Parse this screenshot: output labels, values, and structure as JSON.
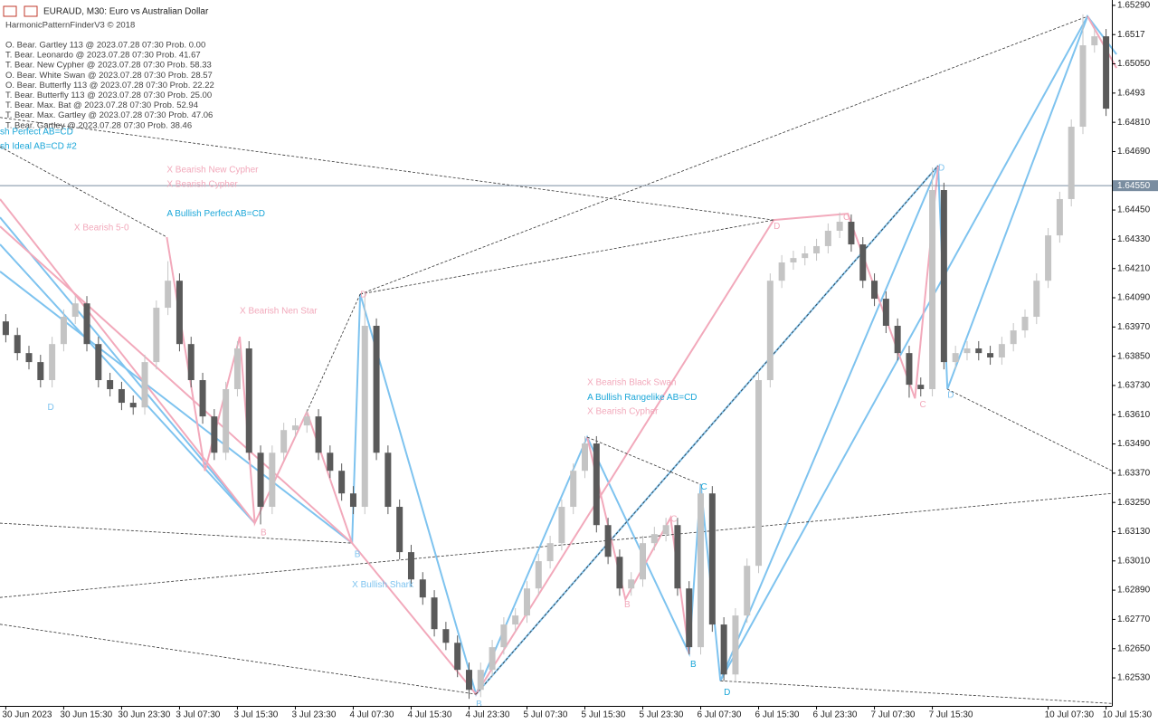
{
  "chart_data": {
    "type": "candlestick",
    "header": "EURAUD, M30:  Euro vs Australian Dollar",
    "indicator": "HarmonicPatternFinderV3 © 2018",
    "pattern_list": [
      "O. Bear. Gartley 113 @ 2023.07.28 07:30 Prob. 0.00",
      "T. Bear. Leonardo @ 2023.07.28 07:30 Prob. 41.67",
      "T. Bear. New Cypher @ 2023.07.28 07:30 Prob. 58.33",
      "O. Bear. White Swan @ 2023.07.28 07:30 Prob. 28.57",
      "O. Bear. Butterfly 113 @ 2023.07.28 07:30 Prob. 22.22",
      "T. Bear. Butterfly 113 @ 2023.07.28 07:30 Prob. 25.00",
      "T. Bear. Max. Bat @ 2023.07.28 07:30 Prob. 52.94",
      "T. Bear. Max. Gartley @ 2023.07.28 07:30 Prob. 47.06",
      "T. Bear. Gartley @ 2023.07.28 07:30 Prob. 38.46"
    ],
    "up_color": "#c4c4c4",
    "down_color": "#5a5a5a",
    "open": [
      1.63993,
      1.63937,
      1.63863,
      1.63826,
      1.63752,
      1.639,
      1.64012,
      1.64067,
      1.639,
      1.63752,
      1.63715,
      1.63659,
      1.6364,
      1.63826,
      1.64049,
      1.6416,
      1.639,
      1.63752,
      1.63603,
      1.63454,
      1.63715,
      1.63882,
      1.63454,
      1.63232,
      1.63454,
      1.63547,
      1.63566,
      1.63603,
      1.63454,
      1.6338,
      1.63287,
      1.63232,
      1.63975,
      1.63454,
      1.63232,
      1.63046,
      1.62934,
      1.6286,
      1.6273,
      1.62674,
      1.62563,
      1.62481,
      1.62563,
      1.62656,
      1.62749,
      1.62786,
      1.62897,
      1.63009,
      1.63083,
      1.63232,
      1.6338,
      1.63492,
      1.63157,
      1.63027,
      1.62897,
      1.62934,
      1.63083,
      1.6312,
      1.63157,
      1.62897,
      1.62656,
      1.63287,
      1.62749,
      1.62544,
      1.62786,
      1.6299,
      1.63752,
      1.6416,
      1.64235,
      1.64253,
      1.64272,
      1.64302,
      1.64365,
      1.64402,
      1.64309,
      1.6416,
      1.64086,
      1.63975,
      1.63863,
      1.63733,
      1.63715,
      1.64532,
      1.63826,
      1.63863,
      1.63882,
      1.63863,
      1.63845,
      1.639,
      1.63956,
      1.64012,
      1.6416,
      1.64346,
      1.64495,
      1.64792,
      1.65126,
      1.65163
    ],
    "high": [
      1.64023,
      1.63967,
      1.63893,
      1.63856,
      1.6393,
      1.64042,
      1.64097,
      1.64097,
      1.6393,
      1.63782,
      1.63745,
      1.63689,
      1.63856,
      1.64079,
      1.6424,
      1.6419,
      1.6393,
      1.63782,
      1.63633,
      1.63745,
      1.63912,
      1.63912,
      1.63484,
      1.63484,
      1.63577,
      1.63596,
      1.63633,
      1.63633,
      1.63484,
      1.6341,
      1.63317,
      1.64105,
      1.64005,
      1.63484,
      1.63262,
      1.63076,
      1.62964,
      1.6289,
      1.6276,
      1.62704,
      1.62593,
      1.62593,
      1.62686,
      1.62779,
      1.62816,
      1.62927,
      1.63039,
      1.63113,
      1.63262,
      1.6341,
      1.63522,
      1.63522,
      1.63187,
      1.63057,
      1.62964,
      1.63113,
      1.6315,
      1.63187,
      1.63187,
      1.62927,
      1.63317,
      1.63317,
      1.62779,
      1.62816,
      1.6302,
      1.63782,
      1.6419,
      1.64265,
      1.64283,
      1.64302,
      1.64332,
      1.64395,
      1.6444,
      1.64432,
      1.64339,
      1.6419,
      1.64116,
      1.64005,
      1.63893,
      1.63763,
      1.64625,
      1.64562,
      1.63893,
      1.63912,
      1.63912,
      1.63893,
      1.6393,
      1.63986,
      1.64042,
      1.6419,
      1.64376,
      1.64525,
      1.64822,
      1.65253,
      1.65193,
      1.65193
    ],
    "low": [
      1.63907,
      1.63833,
      1.63796,
      1.63722,
      1.63722,
      1.6387,
      1.63982,
      1.6387,
      1.63722,
      1.63685,
      1.63629,
      1.6361,
      1.6361,
      1.63796,
      1.64019,
      1.6387,
      1.63722,
      1.63573,
      1.63424,
      1.63424,
      1.63685,
      1.63424,
      1.6316,
      1.63202,
      1.63424,
      1.63517,
      1.63536,
      1.63424,
      1.6335,
      1.63257,
      1.63202,
      1.63202,
      1.63424,
      1.63202,
      1.63016,
      1.62904,
      1.6283,
      1.627,
      1.62644,
      1.62533,
      1.62444,
      1.62451,
      1.62533,
      1.62626,
      1.62719,
      1.62756,
      1.62867,
      1.62979,
      1.63053,
      1.63202,
      1.6335,
      1.63127,
      1.62997,
      1.62867,
      1.62867,
      1.62904,
      1.63053,
      1.6309,
      1.62867,
      1.62626,
      1.62626,
      1.62719,
      1.62518,
      1.62514,
      1.62756,
      1.6296,
      1.63722,
      1.6413,
      1.64205,
      1.64223,
      1.64242,
      1.64272,
      1.64335,
      1.64279,
      1.6413,
      1.64056,
      1.63945,
      1.63833,
      1.6368,
      1.63685,
      1.63685,
      1.63796,
      1.63796,
      1.63833,
      1.63833,
      1.63815,
      1.63815,
      1.6387,
      1.63926,
      1.63982,
      1.6413,
      1.64316,
      1.64465,
      1.64762,
      1.65096,
      1.64836
    ],
    "close": [
      1.63937,
      1.63863,
      1.63826,
      1.63752,
      1.639,
      1.64012,
      1.64067,
      1.639,
      1.63752,
      1.63715,
      1.63659,
      1.6364,
      1.63826,
      1.64049,
      1.6416,
      1.639,
      1.63752,
      1.63603,
      1.63454,
      1.63715,
      1.63882,
      1.63454,
      1.63232,
      1.63454,
      1.63547,
      1.63566,
      1.63603,
      1.63454,
      1.6338,
      1.63287,
      1.63232,
      1.63975,
      1.63454,
      1.63232,
      1.63046,
      1.62934,
      1.6286,
      1.6273,
      1.62674,
      1.62563,
      1.62481,
      1.62563,
      1.62656,
      1.62749,
      1.62786,
      1.62897,
      1.63009,
      1.63083,
      1.63232,
      1.6338,
      1.63492,
      1.63157,
      1.63027,
      1.62897,
      1.62934,
      1.63083,
      1.6312,
      1.63157,
      1.62897,
      1.62656,
      1.63287,
      1.62749,
      1.62544,
      1.62786,
      1.6299,
      1.63752,
      1.6416,
      1.64235,
      1.64253,
      1.64272,
      1.64302,
      1.64365,
      1.64402,
      1.64309,
      1.6416,
      1.64086,
      1.63975,
      1.63863,
      1.63733,
      1.63715,
      1.64532,
      1.63826,
      1.63863,
      1.63882,
      1.63863,
      1.63845,
      1.639,
      1.63956,
      1.64012,
      1.6416,
      1.64346,
      1.64495,
      1.64792,
      1.65126,
      1.65163,
      1.64866
    ],
    "xlim": [
      -0.5,
      95.5
    ],
    "xticks": [
      {
        "value": 0,
        "label": "30 Jun 2023"
      },
      {
        "value": 5,
        "label": "30 Jun 15:30"
      },
      {
        "value": 10,
        "label": "30 Jun 23:30"
      },
      {
        "value": 15,
        "label": "3 Jul 07:30"
      },
      {
        "value": 20,
        "label": "3 Jul 15:30"
      },
      {
        "value": 25,
        "label": "3 Jul 23:30"
      },
      {
        "value": 30,
        "label": "4 Jul 07:30"
      },
      {
        "value": 35,
        "label": "4 Jul 15:30"
      },
      {
        "value": 40,
        "label": "4 Jul 23:30"
      },
      {
        "value": 45,
        "label": "5 Jul 07:30"
      },
      {
        "value": 50,
        "label": "5 Jul 15:30"
      },
      {
        "value": 55,
        "label": "5 Jul 23:30"
      },
      {
        "value": 60,
        "label": "6 Jul 07:30"
      },
      {
        "value": 65,
        "label": "6 Jul 15:30"
      },
      {
        "value": 70,
        "label": "6 Jul 23:30"
      },
      {
        "value": 75,
        "label": "7 Jul 07:30"
      },
      {
        "value": 80,
        "label": "7 Jul 15:30"
      },
      {
        "value": 90,
        "label": "10 Jul 07:30"
      },
      {
        "value": 95,
        "label": "10 Jul 15:30"
      }
    ],
    "ylim": [
      1.62415,
      1.65312
    ],
    "yticks": [
      {
        "value": 1.6529,
        "label": "1.65290"
      },
      1.6517,
      {
        "value": 1.6505,
        "label": "1.65050"
      },
      1.6493,
      {
        "value": 1.6481,
        "label": "1.64810"
      },
      {
        "value": 1.6469,
        "label": "1.64690"
      },
      {
        "value": 1.6445,
        "label": "1.64450"
      },
      {
        "value": 1.6433,
        "label": "1.64330"
      },
      {
        "value": 1.6421,
        "label": "1.64210"
      },
      {
        "value": 1.6409,
        "label": "1.64090"
      },
      {
        "value": 1.6397,
        "label": "1.63970"
      },
      {
        "value": 1.6385,
        "label": "1.63850"
      },
      {
        "value": 1.6373,
        "label": "1.63730"
      },
      {
        "value": 1.6361,
        "label": "1.63610"
      },
      {
        "value": 1.6349,
        "label": "1.63490"
      },
      {
        "value": 1.6337,
        "label": "1.63370"
      },
      {
        "value": 1.6325,
        "label": "1.63250"
      },
      {
        "value": 1.6313,
        "label": "1.63130"
      },
      {
        "value": 1.6301,
        "label": "1.63010"
      },
      {
        "value": 1.6289,
        "label": "1.62890"
      },
      {
        "value": 1.6277,
        "label": "1.62770"
      },
      {
        "value": 1.6265,
        "label": "1.62650"
      },
      {
        "value": 1.6253,
        "label": "1.62530"
      }
    ],
    "price_line": {
      "value": 1.6455,
      "label": "1.64550",
      "color": "#7a8da0"
    },
    "overlays": [
      {
        "color": "#7ec3ef",
        "dashed": false,
        "x": [
          29.9,
          30.6,
          40.6,
          50.2,
          59.0,
          60.0,
          61.7,
          80.5,
          81.3,
          93.4,
          95.9
        ],
        "y": [
          1.63083,
          1.64105,
          1.62463,
          1.63518,
          1.6263,
          1.63324,
          1.62518,
          1.64632,
          1.63715,
          1.65245,
          1.65089
        ]
      },
      {
        "color": "#7ec3ef",
        "dashed": false,
        "x": [
          40.6,
          80.5
        ],
        "y": [
          1.62463,
          1.64632
        ]
      },
      {
        "color": "#7ec3ef",
        "dashed": false,
        "x": [
          61.7,
          93.4
        ],
        "y": [
          1.62518,
          1.65245
        ]
      },
      {
        "color": "#7ec3ef",
        "dashed": false,
        "x": [
          -0.5,
          21.5
        ],
        "y": [
          1.6442,
          1.63165
        ]
      },
      {
        "color": "#7ec3ef",
        "dashed": false,
        "x": [
          -0.5,
          21.5
        ],
        "y": [
          1.64309,
          1.63165
        ]
      },
      {
        "color": "#7ec3ef",
        "dashed": false,
        "x": [
          -0.5,
          29.9
        ],
        "y": [
          1.64198,
          1.63083
        ]
      },
      {
        "color": "#f2a9bb",
        "dashed": false,
        "x": [
          13.9,
          17.2,
          20.2,
          21.5,
          26.0,
          29.9,
          40.6,
          66.3,
          72.7,
          78.5,
          80.5
        ],
        "y": [
          1.64339,
          1.6338,
          1.6393,
          1.63165,
          1.63622,
          1.63083,
          1.62463,
          1.64409,
          1.64435,
          1.63677,
          1.64632
        ]
      },
      {
        "color": "#f2a9bb",
        "dashed": false,
        "x": [
          50.2,
          53.5,
          57.4,
          59.0
        ],
        "y": [
          1.63518,
          1.62853,
          1.63187,
          1.6263
        ]
      },
      {
        "color": "#f2a9bb",
        "dashed": false,
        "x": [
          -0.5,
          21.5
        ],
        "y": [
          1.64495,
          1.63165
        ]
      },
      {
        "color": "#f2a9bb",
        "dashed": false,
        "x": [
          -0.5,
          29.9
        ],
        "y": [
          1.64383,
          1.63083
        ]
      },
      {
        "color": "#f2a9bb",
        "dashed": false,
        "x": [
          93.4,
          95.9
        ],
        "y": [
          1.65245,
          1.65033
        ]
      },
      {
        "color": "#333333",
        "dashed": true,
        "x": [
          30.6,
          93.4
        ],
        "y": [
          1.64105,
          1.65245
        ]
      },
      {
        "color": "#333333",
        "dashed": true,
        "x": [
          30.6,
          66.3
        ],
        "y": [
          1.64105,
          1.64409
        ]
      },
      {
        "color": "#333333",
        "dashed": true,
        "x": [
          -0.5,
          66.3
        ],
        "y": [
          1.6483,
          1.64409
        ]
      },
      {
        "color": "#333333",
        "dashed": true,
        "x": [
          81.3,
          95.5
        ],
        "y": [
          1.63715,
          1.6338
        ]
      },
      {
        "color": "#333333",
        "dashed": true,
        "x": [
          61.7,
          95.5
        ],
        "y": [
          1.62518,
          1.62425
        ]
      },
      {
        "color": "#333333",
        "dashed": true,
        "x": [
          -0.5,
          95.5
        ],
        "y": [
          1.6286,
          1.63287
        ]
      },
      {
        "color": "#333333",
        "dashed": true,
        "x": [
          26.0,
          30.6
        ],
        "y": [
          1.63622,
          1.64105
        ]
      },
      {
        "color": "#333333",
        "dashed": true,
        "x": [
          -0.5,
          29.9
        ],
        "y": [
          1.63165,
          1.63083
        ]
      },
      {
        "color": "#333333",
        "dashed": true,
        "x": [
          50.2,
          60.0
        ],
        "y": [
          1.63518,
          1.63324
        ]
      },
      {
        "color": "#333333",
        "dashed": true,
        "x": [
          40.6,
          80.5
        ],
        "y": [
          1.62463,
          1.64632
        ]
      },
      {
        "color": "#333333",
        "dashed": true,
        "x": [
          -0.5,
          13.9
        ],
        "y": [
          1.6471,
          1.64339
        ]
      },
      {
        "color": "#333333",
        "dashed": true,
        "x": [
          -0.5,
          40.6
        ],
        "y": [
          1.6275,
          1.62463
        ]
      }
    ],
    "annotations": [
      {
        "text": "X Bearish New Cypher",
        "color": "#f2a9bb",
        "x": 13.9,
        "y": 1.64614
      },
      {
        "text": "X Bearish Cypher",
        "color": "#f2a9bb",
        "x": 13.9,
        "y": 1.64554
      },
      {
        "text": "A Bullish Perfect AB=CD",
        "color": "#1aa6d8",
        "x": 13.9,
        "y": 1.64435
      },
      {
        "text": "X Bearish 5-0",
        "color": "#f2a9bb",
        "x": 5.9,
        "y": 1.64376
      },
      {
        "text": "X Bearish Nen Star",
        "color": "#f2a9bb",
        "x": 20.2,
        "y": 1.64034
      },
      {
        "text": "X Bullish Shark",
        "color": "#7ec3ef",
        "x": 29.9,
        "y": 1.62912
      },
      {
        "text": "X Bearish Black Swan",
        "color": "#f2a9bb",
        "x": 50.2,
        "y": 1.63741
      },
      {
        "text": "A Bullish Rangelike AB=CD",
        "color": "#1aa6d8",
        "x": 50.2,
        "y": 1.63681
      },
      {
        "text": "X Bearish Cypher",
        "color": "#f2a9bb",
        "x": 50.2,
        "y": 1.63622
      },
      {
        "text": "sh Perfect AB=CD",
        "color": "#1aa6d8",
        "x": -0.5,
        "y": 1.6477
      },
      {
        "text": "sh Ideal AB=CD #2",
        "color": "#1aa6d8",
        "x": -0.5,
        "y": 1.6471
      },
      {
        "text": "D",
        "color": "#7ec3ef",
        "x": 3.6,
        "y": 1.6364
      },
      {
        "text": "B",
        "color": "#f2a9bb",
        "x": 22,
        "y": 1.63124
      },
      {
        "text": "B",
        "color": "#7ec3ef",
        "x": 30.1,
        "y": 1.63035
      },
      {
        "text": "D",
        "color": "#f2a9bb",
        "x": 30.6,
        "y": 1.64101
      },
      {
        "text": "B",
        "color": "#7ec3ef",
        "x": 40.6,
        "y": 1.62422
      },
      {
        "text": "B",
        "color": "#f2a9bb",
        "x": 53.4,
        "y": 1.6283
      },
      {
        "text": "C",
        "color": "#f2a9bb",
        "x": 57.4,
        "y": 1.6318
      },
      {
        "text": "B",
        "color": "#1aa6d8",
        "x": 59.1,
        "y": 1.62585
      },
      {
        "text": "C",
        "color": "#1aa6d8",
        "x": 60,
        "y": 1.63313
      },
      {
        "text": "D",
        "color": "#1aa6d8",
        "x": 62,
        "y": 1.6247
      },
      {
        "text": "D",
        "color": "#f2a9bb",
        "x": 66.3,
        "y": 1.64383
      },
      {
        "text": "C",
        "color": "#f2a9bb",
        "x": 72.3,
        "y": 1.6442
      },
      {
        "text": "C",
        "color": "#f2a9bb",
        "x": 78.9,
        "y": 1.63651
      },
      {
        "text": "D",
        "color": "#7ec3ef",
        "x": 80.5,
        "y": 1.64621
      },
      {
        "text": "D",
        "color": "#7ec3ef",
        "x": 81.3,
        "y": 1.63689
      }
    ]
  }
}
